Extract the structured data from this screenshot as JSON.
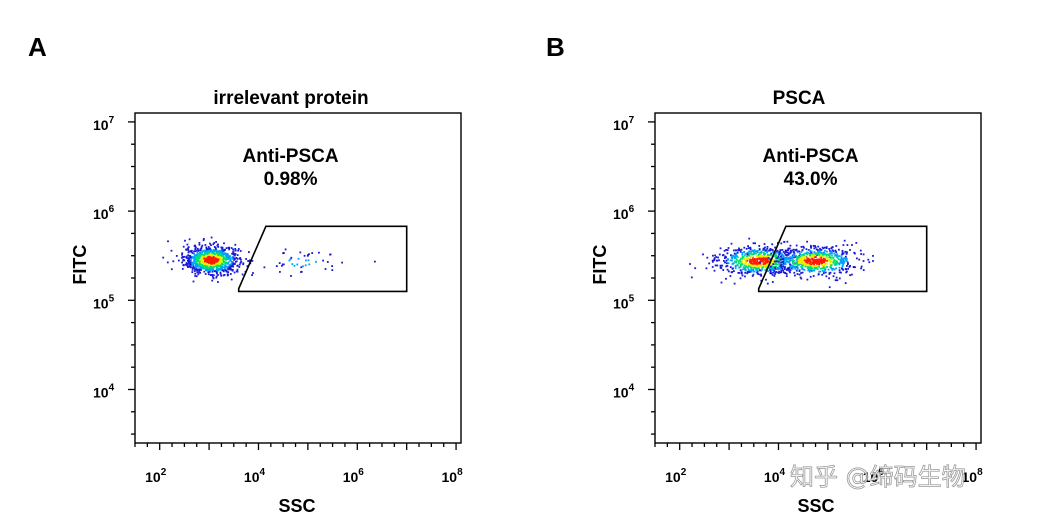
{
  "chart_data": [
    {
      "type": "scatter",
      "panel": "A",
      "title": "irrelevant protein",
      "xlabel": "SSC",
      "ylabel": "FITC",
      "x_scale": "log",
      "y_scale": "log",
      "xlim_log10": [
        1.5,
        8.1
      ],
      "ylim_log10": [
        3.4,
        7.1
      ],
      "x_ticks": [
        {
          "base": "10",
          "exp": "2",
          "log": 2
        },
        {
          "base": "10",
          "exp": "4",
          "log": 4
        },
        {
          "base": "10",
          "exp": "6",
          "log": 6
        },
        {
          "base": "10",
          "exp": "8",
          "log": 8
        }
      ],
      "y_ticks": [
        {
          "base": "10",
          "exp": "4",
          "log": 4
        },
        {
          "base": "10",
          "exp": "5",
          "log": 5
        },
        {
          "base": "10",
          "exp": "6",
          "log": 6
        },
        {
          "base": "10",
          "exp": "7",
          "log": 7
        }
      ],
      "gate": {
        "name": "Anti-PSCA",
        "percent": "0.98%",
        "vertices_log10": [
          [
            3.6,
            5.13
          ],
          [
            4.15,
            5.83
          ],
          [
            7.0,
            5.83
          ],
          [
            7.0,
            5.1
          ],
          [
            3.6,
            5.1
          ]
        ]
      },
      "populations": [
        {
          "center_log10": [
            3.05,
            5.45
          ],
          "spread_log10": [
            0.28,
            0.08
          ],
          "count": 900
        },
        {
          "center_log10": [
            4.9,
            5.43
          ],
          "spread_log10": [
            0.55,
            0.07
          ],
          "count": 45
        }
      ]
    },
    {
      "type": "scatter",
      "panel": "B",
      "title": "PSCA",
      "xlabel": "SSC",
      "ylabel": "FITC",
      "x_scale": "log",
      "y_scale": "log",
      "xlim_log10": [
        1.5,
        8.1
      ],
      "ylim_log10": [
        3.4,
        7.1
      ],
      "x_ticks": [
        {
          "base": "10",
          "exp": "2",
          "log": 2
        },
        {
          "base": "10",
          "exp": "4",
          "log": 4
        },
        {
          "base": "10",
          "exp": "6",
          "log": 6
        },
        {
          "base": "10",
          "exp": "8",
          "log": 8
        }
      ],
      "y_ticks": [
        {
          "base": "10",
          "exp": "4",
          "log": 4
        },
        {
          "base": "10",
          "exp": "5",
          "log": 5
        },
        {
          "base": "10",
          "exp": "6",
          "log": 6
        },
        {
          "base": "10",
          "exp": "7",
          "log": 7
        }
      ],
      "gate": {
        "name": "Anti-PSCA",
        "percent": "43.0%",
        "vertices_log10": [
          [
            3.6,
            5.13
          ],
          [
            4.15,
            5.83
          ],
          [
            7.0,
            5.83
          ],
          [
            7.0,
            5.1
          ],
          [
            3.6,
            5.1
          ]
        ]
      },
      "populations": [
        {
          "center_log10": [
            3.6,
            5.44
          ],
          "spread_log10": [
            0.42,
            0.08
          ],
          "count": 700
        },
        {
          "center_log10": [
            4.75,
            5.44
          ],
          "spread_log10": [
            0.42,
            0.08
          ],
          "count": 650
        }
      ]
    }
  ],
  "watermark": "知乎 @缔码生物",
  "colors": {
    "density_low": "#1a1ad6",
    "density_mid1": "#00a0ff",
    "density_mid2": "#00e070",
    "density_mid3": "#e8f000",
    "density_high": "#ff1a00",
    "frame": "#000000"
  }
}
